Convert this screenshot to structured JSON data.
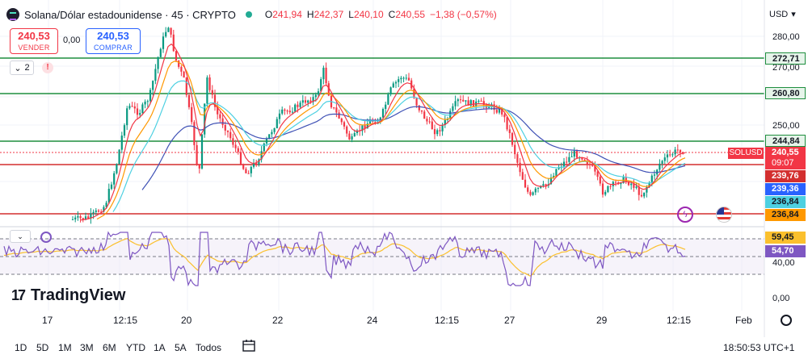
{
  "header": {
    "title": "Solana/Dólar estadounidense · 45 · CRYPTO",
    "ohlc": [
      {
        "k": "O",
        "v": "241,94"
      },
      {
        "k": "H",
        "v": "242,37"
      },
      {
        "k": "L",
        "v": "240,10"
      },
      {
        "k": "C",
        "v": "240,55"
      }
    ],
    "change": "−1,38 (−0,57%)"
  },
  "trade": {
    "sell_price": "240,53",
    "sell_label": "VENDER",
    "buy_price": "240,53",
    "buy_label": "COMPRAR",
    "spread": "0,00"
  },
  "indicators_badge": "2",
  "currency": "USD",
  "price_axis": {
    "labels": [
      "280,00",
      "270,00",
      "250,00",
      "40,00",
      "0,00"
    ]
  },
  "price_tags": {
    "h1": "272,71",
    "h2": "260,80",
    "h3": "244,84",
    "last": "240,55",
    "countdown": "09:07",
    "red1": "239,76",
    "blue": "239,36",
    "cyan": "236,84",
    "orange": "236,84",
    "symbol": "SOLUSD",
    "rsi_ma": "59,45",
    "rsi": "54,70"
  },
  "colors": {
    "up": "#089981",
    "down": "#f23645",
    "green_line": "#1e8e3e",
    "red_line": "#d32f2f",
    "ema_red": "#f23645",
    "ema_orange": "#ff9800",
    "ema_cyan": "#4dd0e1",
    "ema_blue": "#3f51b5",
    "rsi": "#7e57c2",
    "rsi_ma": "#fbc02d"
  },
  "time_axis": [
    "17",
    "12:15",
    "20",
    "22",
    "24",
    "12:15",
    "27",
    "29",
    "12:15",
    "Feb"
  ],
  "range_buttons": [
    "1D",
    "5D",
    "1M",
    "3M",
    "6M",
    "YTD",
    "1A",
    "5A",
    "Todos"
  ],
  "clock": "18:50:53 UTC+1",
  "brand": "TradingView"
}
